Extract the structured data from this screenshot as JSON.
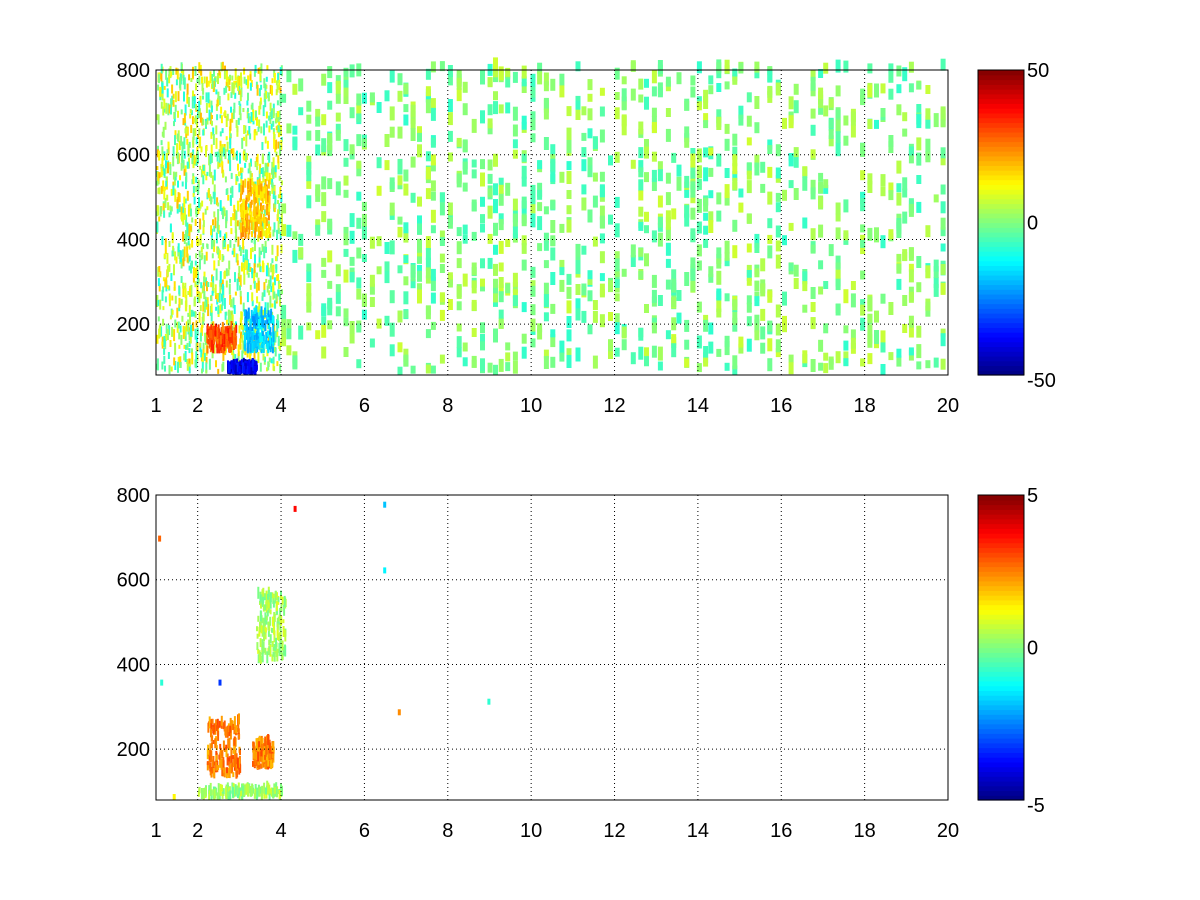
{
  "chart_data": [
    {
      "type": "heatmap",
      "title": "",
      "xlabel": "",
      "ylabel": "",
      "xlim": [
        1,
        20
      ],
      "ylim": [
        80,
        800
      ],
      "x_ticks": [
        "1",
        "2",
        "4",
        "6",
        "8",
        "10",
        "12",
        "14",
        "16",
        "18",
        "20"
      ],
      "y_ticks": [
        "200",
        "400",
        "600",
        "800"
      ],
      "grid": true,
      "colormap": "jet",
      "colorbar": {
        "range": [
          -50,
          50
        ],
        "ticks": [
          "50",
          "0",
          "-50"
        ]
      },
      "features": [
        {
          "kind": "dense_band",
          "x": [
            1.0,
            4.0
          ],
          "value": 5,
          "description_value_range": [
            -10,
            15
          ]
        },
        {
          "kind": "hot_arc",
          "x": [
            2.2,
            2.9
          ],
          "y": [
            130,
            180
          ],
          "value": 30
        },
        {
          "kind": "warm_arc",
          "x": [
            3.0,
            3.7
          ],
          "y": [
            400,
            520
          ],
          "value": 18
        },
        {
          "kind": "cool_patch",
          "x": [
            3.1,
            3.8
          ],
          "y": [
            130,
            220
          ],
          "value": -18
        },
        {
          "kind": "cold_patch",
          "x": [
            2.7,
            3.4
          ],
          "y": [
            80,
            95
          ],
          "value": -40
        },
        {
          "kind": "sparse_columns",
          "x": [
            4.0,
            20.0
          ],
          "value_range": [
            -8,
            8
          ]
        }
      ]
    },
    {
      "type": "heatmap",
      "title": "",
      "xlabel": "",
      "ylabel": "",
      "xlim": [
        1,
        20
      ],
      "ylim": [
        80,
        800
      ],
      "x_ticks": [
        "1",
        "2",
        "4",
        "6",
        "8",
        "10",
        "12",
        "14",
        "16",
        "18",
        "20"
      ],
      "y_ticks": [
        "200",
        "400",
        "600",
        "800"
      ],
      "grid": true,
      "colormap": "jet",
      "colorbar": {
        "range": [
          -5,
          5
        ],
        "ticks": [
          "5",
          "0",
          "-5"
        ]
      },
      "features": [
        {
          "kind": "hot_cluster",
          "x": [
            2.2,
            3.0
          ],
          "y": [
            130,
            260
          ],
          "value": 2.5
        },
        {
          "kind": "hot_cluster",
          "x": [
            3.3,
            3.8
          ],
          "y": [
            150,
            210
          ],
          "value": 2.5
        },
        {
          "kind": "green_band",
          "x": [
            2.0,
            4.0
          ],
          "y": [
            80,
            100
          ],
          "value": 0.3
        },
        {
          "kind": "green_column",
          "x": [
            3.4,
            4.1
          ],
          "y": [
            400,
            560
          ],
          "value": 0.4
        },
        {
          "kind": "isolated_points",
          "x": [
            1.0,
            9.0
          ],
          "value_range": [
            -4,
            4
          ]
        }
      ]
    }
  ]
}
